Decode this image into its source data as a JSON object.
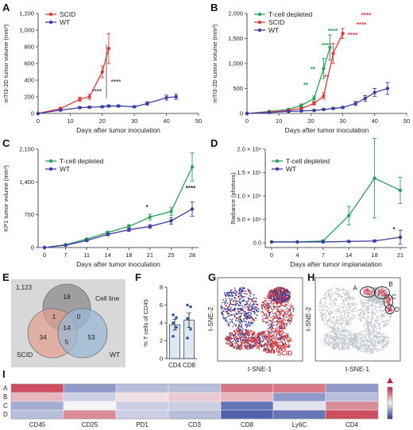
{
  "letters": {
    "A": "A",
    "B": "B",
    "C": "C",
    "D": "D",
    "E": "E",
    "F": "F",
    "G": "G",
    "H": "H",
    "I": "I"
  },
  "colors": {
    "scid": "#e23b3b",
    "wt": "#3b3fa6",
    "tdep": "#2aa25c"
  },
  "chart_data": [
    {
      "id": "A",
      "type": "line",
      "xlabel": "Days after tumor inoculation",
      "ylabel": "mTI3-2D tumor volume (mm³)",
      "xlim": [
        0,
        50
      ],
      "ylim": [
        0,
        1200
      ],
      "xticks": [
        0,
        10,
        20,
        30,
        40,
        50
      ],
      "yticks": [
        0,
        200,
        400,
        600,
        800,
        1000,
        1200
      ],
      "yticklabels": [
        "0",
        "200",
        "400",
        "600",
        "800",
        "1,000",
        "1,200"
      ],
      "legend": [
        "SCID",
        "WT"
      ],
      "series": [
        {
          "name": "SCID",
          "color": "#e23b3b",
          "x": [
            0,
            7,
            13,
            16,
            20,
            22
          ],
          "y": [
            0,
            60,
            170,
            200,
            500,
            780
          ],
          "err": [
            0,
            10,
            25,
            30,
            70,
            180
          ]
        },
        {
          "name": "WT",
          "color": "#3b3fa6",
          "x": [
            0,
            7,
            13,
            16,
            20,
            22,
            25,
            30,
            34,
            40,
            43
          ],
          "y": [
            0,
            40,
            70,
            75,
            80,
            90,
            90,
            80,
            120,
            190,
            200
          ],
          "err": [
            0,
            8,
            10,
            10,
            10,
            12,
            12,
            10,
            20,
            30,
            30
          ]
        }
      ],
      "annotations": [
        "****",
        "****"
      ]
    },
    {
      "id": "B",
      "type": "line",
      "xlabel": "Days after tumor inoculation",
      "ylabel": "mTI3-2D tumor volume (mm³)",
      "xlim": [
        0,
        50
      ],
      "ylim": [
        0,
        2000
      ],
      "xticks": [
        0,
        10,
        20,
        30,
        40,
        50
      ],
      "yticks": [
        0,
        500,
        1000,
        1500,
        2000
      ],
      "yticklabels": [
        "0",
        "500",
        "1,000",
        "1,500",
        "2,000"
      ],
      "legend": [
        "T-cell depleted",
        "SCID",
        "WT"
      ],
      "series": [
        {
          "name": "T-cell depleted",
          "color": "#2aa25c",
          "x": [
            0,
            7,
            13,
            17,
            21,
            24,
            26
          ],
          "y": [
            0,
            40,
            80,
            160,
            300,
            900,
            1320
          ],
          "err": [
            0,
            8,
            15,
            30,
            50,
            200,
            250
          ]
        },
        {
          "name": "SCID",
          "color": "#e23b3b",
          "x": [
            0,
            7,
            13,
            17,
            21,
            24,
            27,
            30
          ],
          "y": [
            0,
            30,
            60,
            100,
            200,
            350,
            1200,
            1600
          ],
          "err": [
            0,
            6,
            10,
            20,
            30,
            60,
            200,
            100
          ]
        },
        {
          "name": "WT",
          "color": "#3b3fa6",
          "x": [
            0,
            7,
            13,
            17,
            21,
            24,
            27,
            30,
            34,
            37,
            40,
            44
          ],
          "y": [
            0,
            20,
            40,
            50,
            60,
            80,
            100,
            120,
            200,
            300,
            420,
            500
          ],
          "err": [
            0,
            5,
            8,
            8,
            10,
            12,
            15,
            20,
            40,
            60,
            80,
            120
          ]
        }
      ],
      "annotations": [
        "**",
        "**",
        "****",
        "****",
        "**",
        "****",
        "****",
        "****"
      ]
    },
    {
      "id": "C",
      "type": "line",
      "xlabel": "Days after tumor inoculation",
      "ylabel": "KP1 tumor volume (mm³)",
      "categories": [
        "0",
        "7",
        "11",
        "14",
        "18",
        "21",
        "25",
        "28"
      ],
      "ylim": [
        0,
        2100
      ],
      "yticks": [
        0,
        700,
        1400,
        2100
      ],
      "yticklabels": [
        "0",
        "700",
        "1,400",
        "2,100"
      ],
      "legend": [
        "T-cell depleted",
        "WT"
      ],
      "series": [
        {
          "name": "T-cell depleted",
          "color": "#2aa25c",
          "values": [
            0,
            60,
            180,
            320,
            450,
            650,
            770,
            1720
          ],
          "err": [
            0,
            10,
            20,
            30,
            40,
            60,
            80,
            300
          ]
        },
        {
          "name": "WT",
          "color": "#3b3fa6",
          "values": [
            0,
            50,
            150,
            280,
            380,
            450,
            570,
            820
          ],
          "err": [
            0,
            8,
            15,
            25,
            35,
            40,
            70,
            150
          ]
        }
      ],
      "annotations": [
        "*",
        "****"
      ]
    },
    {
      "id": "D",
      "type": "line",
      "xlabel": "Days after tumor implanatation",
      "ylabel": "Radiance (photons)",
      "categories": [
        "0",
        "4",
        "7",
        "14",
        "18",
        "21"
      ],
      "ylim": [
        -100000000,
        2000000000
      ],
      "yticks": [
        0,
        500000000,
        1000000000,
        1500000000,
        2000000000
      ],
      "yticklabels": [
        "0.0",
        "5.0 × 10⁸",
        "1.0 × 10⁹",
        "1.5 × 10⁹",
        "2.0 × 10⁹"
      ],
      "legend": [
        "T-cell depleted",
        "WT"
      ],
      "series": [
        {
          "name": "T-cell depleted",
          "color": "#2aa25c",
          "values": [
            20000000,
            20000000,
            40000000,
            580000000,
            1380000000,
            1120000000
          ],
          "err": [
            0,
            0,
            10000000,
            200000000,
            850000000,
            280000000
          ]
        },
        {
          "name": "WT",
          "color": "#3b3fa6",
          "values": [
            20000000,
            20000000,
            20000000,
            30000000,
            40000000,
            120000000
          ],
          "err": [
            0,
            0,
            0,
            10000000,
            20000000,
            150000000
          ]
        }
      ],
      "annotations": [
        "*"
      ]
    },
    {
      "id": "F",
      "type": "bar",
      "ylabel": "% T cells of CD45",
      "categories": [
        "CD4",
        "CD8"
      ],
      "values": [
        3.8,
        4.3
      ],
      "err": [
        0.6,
        0.8
      ],
      "ylim": [
        0,
        8
      ],
      "yticks": [
        0,
        2,
        4,
        6,
        8
      ],
      "points": [
        [
          2.5,
          3.5,
          4.0,
          4.6,
          4.9
        ],
        [
          2.3,
          3.3,
          4.5,
          5.8,
          6.0
        ]
      ]
    },
    {
      "id": "I",
      "type": "heatmap",
      "rows": [
        "A",
        "B",
        "C",
        "D"
      ],
      "columns": [
        "CD45",
        "CD25",
        "PD1",
        "CD3",
        "CD8",
        "Ly6C",
        "CD4"
      ],
      "values": [
        [
          0.8,
          -0.5,
          -0.3,
          -0.3,
          0.6,
          0.6,
          -0.5
        ],
        [
          0.3,
          -0.2,
          0.1,
          0.2,
          0.3,
          -0.5,
          -0.3
        ],
        [
          -0.4,
          0.0,
          -0.2,
          -0.2,
          -0.7,
          -0.1,
          0.5
        ],
        [
          -0.3,
          0.5,
          -0.2,
          -0.3,
          -0.8,
          -0.7,
          0.8
        ]
      ]
    }
  ],
  "venn": {
    "total": "1,123",
    "labels": {
      "cell_line": "Cell line",
      "scid": "SCID",
      "wt": "WT"
    },
    "counts": {
      "cell_only": "18",
      "scid_only": "34",
      "wt_only": "53",
      "cell_scid": "1",
      "cell_wt": "0",
      "scid_wt": "5",
      "all": "14"
    }
  },
  "tsne_g": {
    "xlabel": "t-SNE-1",
    "ylabel": "t-SNE-2",
    "label_wt": "WT",
    "label_scid": "SCID"
  },
  "tsne_h": {
    "xlabel": "t-SNE-1",
    "ylabel": "t-SNE-2",
    "clusters": [
      "A",
      "B",
      "C",
      "D"
    ]
  }
}
